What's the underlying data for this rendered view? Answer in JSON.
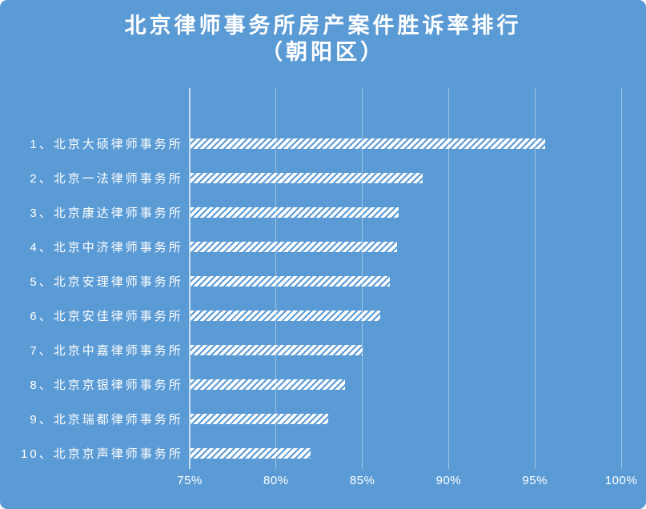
{
  "title": {
    "line1": "北京律师事务所房产案件胜诉率排行",
    "line2": "（朝阳区）"
  },
  "colors": {
    "background": "#5b9bd5",
    "text": "#ffffff",
    "bar_fill": "#ffffff",
    "gridline": "rgba(255,255,255,0.40)",
    "axis_line": "rgba(255,255,255,0.65)"
  },
  "chart_data": {
    "type": "bar",
    "orientation": "horizontal",
    "title": "北京律师事务所房产案件胜诉率排行（朝阳区）",
    "categories": [
      "1、北京大硕律师事务所",
      "2、北京一法律师事务所",
      "3、北京康达律师事务所",
      "4、北京中济律师事务所",
      "5、北京安理律师事务所",
      "6、北京安佳律师事务所",
      "7、北京中嘉律师事务所",
      "8、北京京银律师事务所",
      "9、北京瑞都律师事务所",
      "10、北京京声律师事务所"
    ],
    "values": [
      95.6,
      88.5,
      87.1,
      87.0,
      86.6,
      86.0,
      85.0,
      84.0,
      83.0,
      82.0
    ],
    "unit": "%",
    "xlim": [
      75,
      100
    ],
    "x_axis_ticks": [
      "75%",
      "80%",
      "85%",
      "90%",
      "95%",
      "100%"
    ],
    "grid": true,
    "legend": false,
    "bar_style": "white diagonal hatch pattern on blue background",
    "value_labels_shown": false
  }
}
